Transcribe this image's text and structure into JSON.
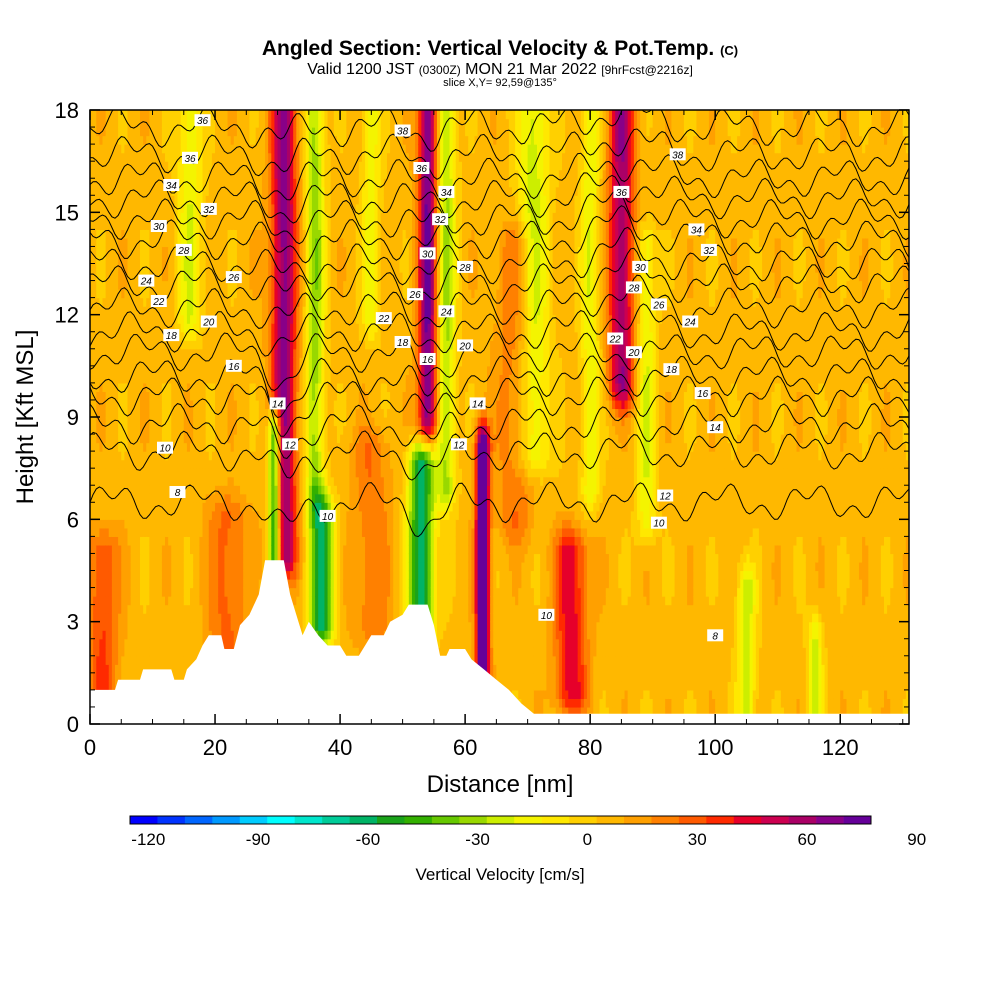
{
  "header": {
    "title_main": "Angled Section: Vertical Velocity & Pot.Temp.",
    "title_tag": "(C)",
    "valid_prefix": "Valid 1200 JST",
    "valid_utc": "(0300Z)",
    "valid_date": "MON 21 Mar 2022",
    "valid_fcst": "[9hrFcst@2216z]",
    "slice": "slice X,Y= 92,59@135°"
  },
  "colors": {
    "frame": "#000000",
    "terrain": "#ffffff",
    "contour": "#000000"
  },
  "chart_data": {
    "type": "heatmap",
    "xlabel": "Distance [nm]",
    "ylabel": "Height [Kft MSL]",
    "xlim": [
      0,
      131
    ],
    "ylim": [
      0,
      18
    ],
    "x_ticks": [
      0,
      20,
      40,
      60,
      80,
      100,
      120
    ],
    "y_ticks": [
      0,
      3,
      6,
      9,
      12,
      15,
      18
    ],
    "colorbar": {
      "label": "Vertical Velocity [cm/s]",
      "ticks": [
        -120,
        -90,
        -60,
        -30,
        0,
        30,
        60,
        90
      ],
      "min": -125,
      "step": 7.5,
      "colors": [
        "#0000ff",
        "#0033ff",
        "#0066ff",
        "#0099ff",
        "#00ccff",
        "#00ffff",
        "#00e6cc",
        "#00cc99",
        "#00b366",
        "#1aa31a",
        "#33b000",
        "#66c800",
        "#99d800",
        "#ccee00",
        "#f4f400",
        "#ffe800",
        "#ffd000",
        "#ffb800",
        "#ffa000",
        "#ff8000",
        "#ff5a00",
        "#ff2a00",
        "#e6002a",
        "#cc0050",
        "#aa0066",
        "#880088",
        "#660099"
      ]
    },
    "updrafts": [
      {
        "x": 31,
        "w": 2.0,
        "ybot": 5.0,
        "ytop": 18,
        "v": 60
      },
      {
        "x": 54,
        "w": 1.5,
        "ybot": 9.0,
        "ytop": 18,
        "v": 65
      },
      {
        "x": 62.8,
        "w": 1.0,
        "ybot": 1.0,
        "ytop": 8.0,
        "v": 95
      },
      {
        "x": 85,
        "w": 2.0,
        "ybot": 10.0,
        "ytop": 18,
        "v": 55
      },
      {
        "x": 77,
        "w": 2.5,
        "ybot": 1.0,
        "ytop": 5.0,
        "v": 40
      },
      {
        "x": 2,
        "w": 2.5,
        "ybot": 1.0,
        "ytop": 5.0,
        "v": 28
      },
      {
        "x": 22,
        "w": 3.0,
        "ybot": 2.0,
        "ytop": 6.0,
        "v": 22
      },
      {
        "x": 45,
        "w": 3.0,
        "ybot": 3.0,
        "ytop": 8.0,
        "v": 18
      },
      {
        "x": 68,
        "w": 3.0,
        "ybot": 6.0,
        "ytop": 14.0,
        "v": 18
      }
    ],
    "downdrafts": [
      {
        "x": 29.5,
        "w": 1.0,
        "ybot": 4.5,
        "ytop": 8.5,
        "v": -80
      },
      {
        "x": 37,
        "w": 2.0,
        "ybot": 3.0,
        "ytop": 6.0,
        "v": -65
      },
      {
        "x": 53,
        "w": 2.0,
        "ybot": 3.0,
        "ytop": 7.5,
        "v": -70
      },
      {
        "x": 36,
        "w": 1.5,
        "ybot": 7.0,
        "ytop": 18,
        "v": -38
      },
      {
        "x": 57,
        "w": 1.5,
        "ybot": 7.0,
        "ytop": 18,
        "v": -35
      },
      {
        "x": 71,
        "w": 2.5,
        "ybot": 8.0,
        "ytop": 18,
        "v": -30
      },
      {
        "x": 80,
        "w": 1.5,
        "ybot": 7.0,
        "ytop": 18,
        "v": -25
      },
      {
        "x": 89,
        "w": 1.5,
        "ybot": 6.0,
        "ytop": 14.0,
        "v": -25
      },
      {
        "x": 105,
        "w": 1.5,
        "ybot": 0.5,
        "ytop": 4.0,
        "v": -30
      },
      {
        "x": 116,
        "w": 1.2,
        "ybot": 0.5,
        "ytop": 2.5,
        "v": -28
      },
      {
        "x": 16,
        "w": 2.0,
        "ybot": 12.0,
        "ytop": 18,
        "v": -25
      },
      {
        "x": 45,
        "w": 1.5,
        "ybot": 12.0,
        "ytop": 18,
        "v": -22
      }
    ],
    "terrain": [
      {
        "x": 0,
        "h": 1.0
      },
      {
        "x": 4,
        "h": 1.0
      },
      {
        "x": 4.5,
        "h": 1.3
      },
      {
        "x": 8,
        "h": 1.3
      },
      {
        "x": 8.5,
        "h": 1.6
      },
      {
        "x": 13,
        "h": 1.6
      },
      {
        "x": 13.5,
        "h": 1.3
      },
      {
        "x": 15,
        "h": 1.3
      },
      {
        "x": 15.5,
        "h": 1.6
      },
      {
        "x": 17,
        "h": 1.9
      },
      {
        "x": 18,
        "h": 2.3
      },
      {
        "x": 19,
        "h": 2.6
      },
      {
        "x": 21,
        "h": 2.6
      },
      {
        "x": 21.5,
        "h": 2.2
      },
      {
        "x": 23,
        "h": 2.2
      },
      {
        "x": 24,
        "h": 2.9
      },
      {
        "x": 25.5,
        "h": 3.2
      },
      {
        "x": 27,
        "h": 3.8
      },
      {
        "x": 28,
        "h": 4.8
      },
      {
        "x": 31,
        "h": 4.8
      },
      {
        "x": 32,
        "h": 3.8
      },
      {
        "x": 33,
        "h": 3.2
      },
      {
        "x": 34,
        "h": 2.6
      },
      {
        "x": 35,
        "h": 3.0
      },
      {
        "x": 36.5,
        "h": 2.6
      },
      {
        "x": 38,
        "h": 2.3
      },
      {
        "x": 40,
        "h": 2.3
      },
      {
        "x": 41,
        "h": 2.0
      },
      {
        "x": 43,
        "h": 2.0
      },
      {
        "x": 44,
        "h": 2.3
      },
      {
        "x": 45,
        "h": 2.6
      },
      {
        "x": 47,
        "h": 2.6
      },
      {
        "x": 48,
        "h": 3.0
      },
      {
        "x": 50,
        "h": 3.2
      },
      {
        "x": 51,
        "h": 3.5
      },
      {
        "x": 54,
        "h": 3.5
      },
      {
        "x": 55,
        "h": 2.9
      },
      {
        "x": 56,
        "h": 2.0
      },
      {
        "x": 57,
        "h": 2.0
      },
      {
        "x": 57.5,
        "h": 2.2
      },
      {
        "x": 60,
        "h": 2.2
      },
      {
        "x": 61,
        "h": 1.9
      },
      {
        "x": 63,
        "h": 1.6
      },
      {
        "x": 65,
        "h": 1.3
      },
      {
        "x": 67,
        "h": 1.0
      },
      {
        "x": 69,
        "h": 0.6
      },
      {
        "x": 71,
        "h": 0.3
      },
      {
        "x": 131,
        "h": 0.3
      }
    ],
    "pot_temp": {
      "levels": [
        8,
        10,
        12,
        14,
        16,
        18,
        20,
        22,
        24,
        26,
        28,
        30,
        32,
        34,
        36,
        38
      ],
      "base_height": [
        6.5,
        8.0,
        8.8,
        9.6,
        10.2,
        10.9,
        11.5,
        12.2,
        12.9,
        13.5,
        14.2,
        14.8,
        15.4,
        16.0,
        16.7,
        17.5
      ],
      "labels": [
        {
          "level": 36,
          "x": 18,
          "y": 17.7
        },
        {
          "level": 36,
          "x": 16,
          "y": 16.6
        },
        {
          "level": 34,
          "x": 13,
          "y": 15.8
        },
        {
          "level": 32,
          "x": 19,
          "y": 15.1
        },
        {
          "level": 30,
          "x": 11,
          "y": 14.6
        },
        {
          "level": 28,
          "x": 15,
          "y": 13.9
        },
        {
          "level": 26,
          "x": 23,
          "y": 13.1
        },
        {
          "level": 24,
          "x": 9,
          "y": 13.0
        },
        {
          "level": 22,
          "x": 11,
          "y": 12.4
        },
        {
          "level": 20,
          "x": 19,
          "y": 11.8
        },
        {
          "level": 18,
          "x": 13,
          "y": 11.4
        },
        {
          "level": 16,
          "x": 23,
          "y": 10.5
        },
        {
          "level": 14,
          "x": 30,
          "y": 9.4
        },
        {
          "level": 12,
          "x": 32,
          "y": 8.2
        },
        {
          "level": 10,
          "x": 12,
          "y": 8.1
        },
        {
          "level": 8,
          "x": 14,
          "y": 6.8
        },
        {
          "level": 10,
          "x": 38,
          "y": 6.1
        },
        {
          "level": 38,
          "x": 50,
          "y": 17.4
        },
        {
          "level": 36,
          "x": 53,
          "y": 16.3
        },
        {
          "level": 34,
          "x": 57,
          "y": 15.6
        },
        {
          "level": 32,
          "x": 56,
          "y": 14.8
        },
        {
          "level": 30,
          "x": 54,
          "y": 13.8
        },
        {
          "level": 28,
          "x": 60,
          "y": 13.4
        },
        {
          "level": 26,
          "x": 52,
          "y": 12.6
        },
        {
          "level": 24,
          "x": 57,
          "y": 12.1
        },
        {
          "level": 22,
          "x": 47,
          "y": 11.9
        },
        {
          "level": 20,
          "x": 60,
          "y": 11.1
        },
        {
          "level": 18,
          "x": 50,
          "y": 11.2
        },
        {
          "level": 16,
          "x": 54,
          "y": 10.7
        },
        {
          "level": 14,
          "x": 62,
          "y": 9.4
        },
        {
          "level": 12,
          "x": 59,
          "y": 8.2
        },
        {
          "level": 38,
          "x": 94,
          "y": 16.7
        },
        {
          "level": 36,
          "x": 85,
          "y": 15.6
        },
        {
          "level": 34,
          "x": 97,
          "y": 14.5
        },
        {
          "level": 32,
          "x": 99,
          "y": 13.9
        },
        {
          "level": 30,
          "x": 88,
          "y": 13.4
        },
        {
          "level": 28,
          "x": 87,
          "y": 12.8
        },
        {
          "level": 26,
          "x": 91,
          "y": 12.3
        },
        {
          "level": 24,
          "x": 96,
          "y": 11.8
        },
        {
          "level": 22,
          "x": 84,
          "y": 11.3
        },
        {
          "level": 20,
          "x": 87,
          "y": 10.9
        },
        {
          "level": 18,
          "x": 93,
          "y": 10.4
        },
        {
          "level": 16,
          "x": 98,
          "y": 9.7
        },
        {
          "level": 14,
          "x": 100,
          "y": 8.7
        },
        {
          "level": 12,
          "x": 92,
          "y": 6.7
        },
        {
          "level": 10,
          "x": 91,
          "y": 5.9
        },
        {
          "level": 10,
          "x": 73,
          "y": 3.2
        },
        {
          "level": 8,
          "x": 100,
          "y": 2.6
        }
      ]
    }
  }
}
